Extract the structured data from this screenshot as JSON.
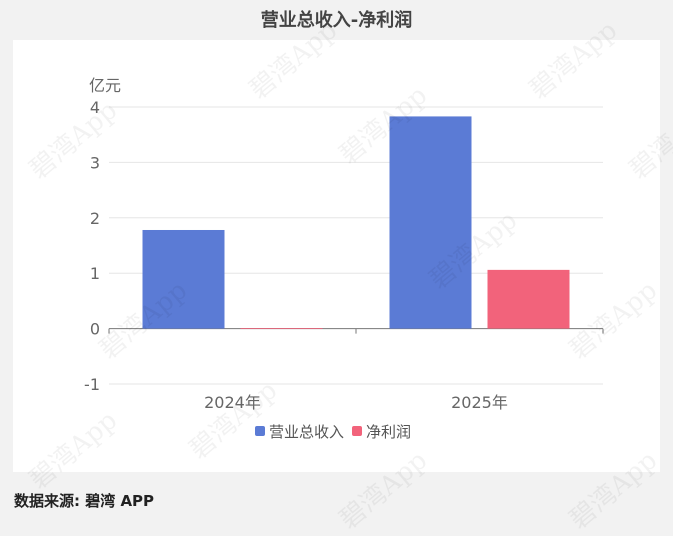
{
  "title": "营业总收入-净利润",
  "source": "数据来源: 碧湾 APP",
  "watermark": "碧湾App",
  "colors": {
    "revenue": "#5b7bd5",
    "profit": "#f2637b",
    "background": "#f2f2f2",
    "panel": "#ffffff"
  },
  "chart_data": {
    "type": "bar",
    "categories": [
      "2024年",
      "2025年"
    ],
    "series": [
      {
        "name": "营业总收入",
        "values": [
          1.78,
          3.83
        ]
      },
      {
        "name": "净利润",
        "values": [
          0.01,
          1.06
        ]
      }
    ],
    "ylabel": "亿元",
    "ylim": [
      -1,
      4
    ],
    "yticks": [
      -1,
      0,
      1,
      2,
      3,
      4
    ],
    "grid": true,
    "legend_position": "bottom"
  }
}
